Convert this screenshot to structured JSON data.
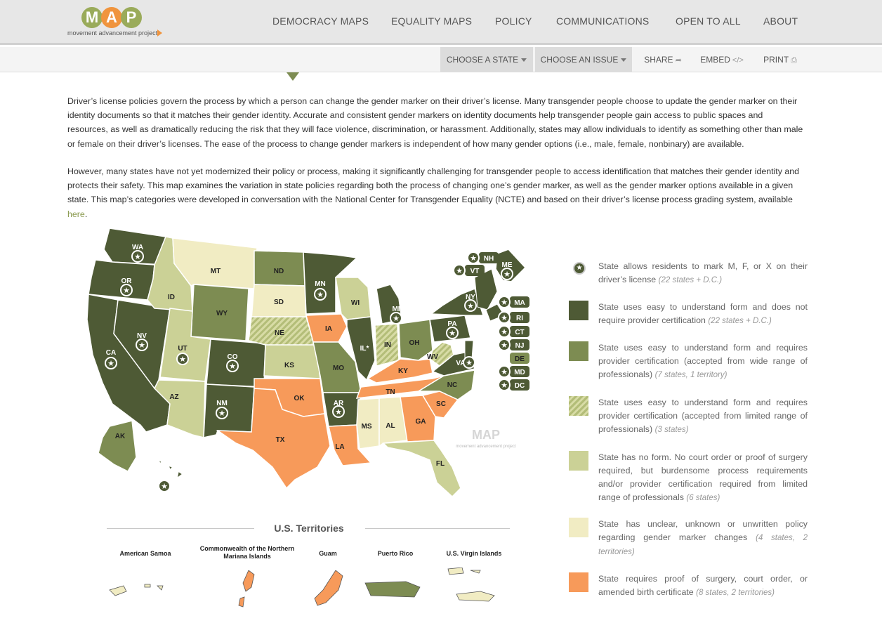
{
  "brand": {
    "letters": [
      "M",
      "A",
      "P"
    ],
    "letter_colors": [
      "#9aab5a",
      "#f0943d",
      "#9aab5a"
    ],
    "subtitle": "movement advancement project"
  },
  "nav": {
    "items": [
      "DEMOCRACY MAPS",
      "EQUALITY MAPS",
      "POLICY",
      "COMMUNICATIONS",
      "OPEN TO ALL",
      "ABOUT"
    ]
  },
  "toolbar": {
    "choose_state": "CHOOSE A STATE",
    "choose_issue": "CHOOSE AN ISSUE",
    "share": "SHARE",
    "embed": "EMBED",
    "print": "PRINT"
  },
  "intro": {
    "p1": "Driver’s license policies govern the process by which a person can change the gender marker on their driver’s license. Many transgender people choose to update the gender marker on their identity documents so that it matches their gender identity. Accurate and consistent gender markers on identity documents help transgender people gain access to public spaces and resources, as well as dramatically reducing the risk that they will face violence, discrimination, or harassment.  Additionally, states may allow individuals to identify as something other than male or female on their driver’s licenses. The ease of the process to change gender markers is independent of how many gender options (i.e., male, female, nonbinary) are available.",
    "p2_main": "However, many states have not yet modernized their policy or process, making it significantly challenging for transgender people to access identification that matches their gender identity and protects their safety. This map examines the variation in state policies regarding both the process of changing one’s gender marker, as well as the gender marker options available in a given state.  This map’s categories were developed in conversation with the National Center for Transgender Equality (NCTE) and based on their driver’s license process grading system, available ",
    "p2_link": "here",
    "p2_end": "."
  },
  "colors": {
    "dark": "#4e5a35",
    "medium": "#7d8c52",
    "light": "#cbd196",
    "pale": "#f1ecc3",
    "orange": "#f79a5a",
    "hatch_a": "#b3bd78",
    "hatch_b": "#d8dca6"
  },
  "legend": [
    {
      "kind": "star",
      "text": "State allows residents to mark M, F, or X on their driver’s license",
      "count": "(22 states + D.C.)"
    },
    {
      "kind": "dark",
      "text": "State uses easy to understand form and does not require provider certification",
      "count": "(22 states + D.C.)"
    },
    {
      "kind": "medium",
      "text": "State uses easy to understand form and requires provider certification (accepted from wide range of professionals)",
      "count": "(7 states, 1 territory)"
    },
    {
      "kind": "hatched",
      "text": "State uses easy to understand form and requires provider certification (accepted from limited range of professionals)",
      "count": "(3 states)"
    },
    {
      "kind": "light",
      "text": "State has no form. No court order or proof of surgery required, but burdensome process requirements and/or provider certification required from limited range of professionals",
      "count": "(6 states)"
    },
    {
      "kind": "pale",
      "text": "State has unclear, unknown or unwritten policy regarding gender marker changes",
      "count": "(4 states, 2 territories)"
    },
    {
      "kind": "orange",
      "text": "State requires proof of surgery, court order, or amended birth certificate",
      "count": "(8 states, 2 territories)"
    }
  ],
  "states": [
    {
      "code": "WA",
      "cat": "dark",
      "star": true
    },
    {
      "code": "OR",
      "cat": "dark",
      "star": true
    },
    {
      "code": "CA",
      "cat": "dark",
      "star": true
    },
    {
      "code": "NV",
      "cat": "dark",
      "star": true
    },
    {
      "code": "ID",
      "cat": "light",
      "star": false
    },
    {
      "code": "MT",
      "cat": "pale",
      "star": false
    },
    {
      "code": "WY",
      "cat": "medium",
      "star": false
    },
    {
      "code": "UT",
      "cat": "light",
      "star": true
    },
    {
      "code": "AZ",
      "cat": "light",
      "star": false
    },
    {
      "code": "CO",
      "cat": "dark",
      "star": true
    },
    {
      "code": "NM",
      "cat": "dark",
      "star": true
    },
    {
      "code": "ND",
      "cat": "medium",
      "star": false
    },
    {
      "code": "SD",
      "cat": "pale",
      "star": false
    },
    {
      "code": "NE",
      "cat": "hatched",
      "star": false
    },
    {
      "code": "KS",
      "cat": "light",
      "star": false
    },
    {
      "code": "OK",
      "cat": "orange",
      "star": false
    },
    {
      "code": "TX",
      "cat": "orange",
      "star": false
    },
    {
      "code": "MN",
      "cat": "dark",
      "star": true
    },
    {
      "code": "IA",
      "cat": "orange",
      "star": false
    },
    {
      "code": "MO",
      "cat": "medium",
      "star": false
    },
    {
      "code": "AR",
      "cat": "dark",
      "star": true
    },
    {
      "code": "LA",
      "cat": "orange",
      "star": false
    },
    {
      "code": "WI",
      "cat": "light",
      "star": false
    },
    {
      "code": "IL",
      "cat": "dark",
      "star": false,
      "label": "IL*"
    },
    {
      "code": "MI",
      "cat": "dark",
      "star": true
    },
    {
      "code": "IN",
      "cat": "hatched",
      "star": false
    },
    {
      "code": "OH",
      "cat": "medium",
      "star": false
    },
    {
      "code": "KY",
      "cat": "orange",
      "star": false
    },
    {
      "code": "TN",
      "cat": "orange",
      "star": false
    },
    {
      "code": "MS",
      "cat": "pale",
      "star": false
    },
    {
      "code": "AL",
      "cat": "pale",
      "star": false
    },
    {
      "code": "GA",
      "cat": "orange",
      "star": false
    },
    {
      "code": "FL",
      "cat": "light",
      "star": false
    },
    {
      "code": "SC",
      "cat": "orange",
      "star": false
    },
    {
      "code": "NC",
      "cat": "medium",
      "star": false
    },
    {
      "code": "VA",
      "cat": "dark",
      "star": true
    },
    {
      "code": "WV",
      "cat": "hatched",
      "star": false
    },
    {
      "code": "PA",
      "cat": "dark",
      "star": true
    },
    {
      "code": "NY",
      "cat": "dark",
      "star": true
    },
    {
      "code": "ME",
      "cat": "dark",
      "star": true
    },
    {
      "code": "AK",
      "cat": "medium",
      "star": false
    },
    {
      "code": "HI",
      "cat": "dark",
      "star": true
    }
  ],
  "small_states": [
    {
      "code": "NH",
      "star": true
    },
    {
      "code": "VT",
      "star": true
    },
    {
      "code": "MA",
      "star": true
    },
    {
      "code": "RI",
      "star": true
    },
    {
      "code": "CT",
      "star": true
    },
    {
      "code": "NJ",
      "star": true
    },
    {
      "code": "DE",
      "star": false
    },
    {
      "code": "MD",
      "star": true
    },
    {
      "code": "DC",
      "star": true
    }
  ],
  "watermark": {
    "text": "MAP",
    "sub": "movement advancement project"
  },
  "territories": {
    "title": "U.S. Territories",
    "items": [
      {
        "name": "American Samoa",
        "cat": "pale"
      },
      {
        "name": "Commonwealth of the Northern Mariana Islands",
        "cat": "orange"
      },
      {
        "name": "Guam",
        "cat": "orange"
      },
      {
        "name": "Puerto Rico",
        "cat": "medium"
      },
      {
        "name": "U.S. Virgin Islands",
        "cat": "pale"
      }
    ]
  }
}
